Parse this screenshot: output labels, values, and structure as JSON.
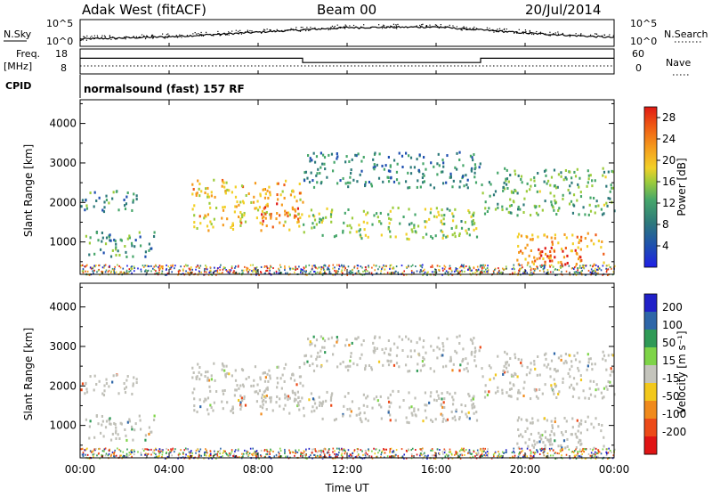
{
  "header": {
    "station": "Adak West (fitACF)",
    "beam": "Beam 00",
    "date": "20/Jul/2014"
  },
  "noise_panel": {
    "left_label": "N.Sky",
    "right_label": "N.Search",
    "left_ticks": [
      "10^5",
      "10^0"
    ],
    "right_ticks": [
      "10^5",
      "10^0"
    ]
  },
  "freq_panel": {
    "left_label_line1": "Freq.",
    "left_label_line2": "[MHz]",
    "left_ticks": [
      "18",
      "8"
    ],
    "right_label": "Nave",
    "right_ticks": [
      "60",
      "0"
    ]
  },
  "cpid": {
    "label": "CPID",
    "text": "normalsound (fast) 157 RF"
  },
  "power_panel": {
    "ylabel": "Slant Range [km]",
    "yticks": [
      "1000",
      "2000",
      "3000",
      "4000"
    ],
    "colorbar_label": "Power [dB]",
    "colorbar_ticks": [
      "4",
      "8",
      "12",
      "16",
      "20",
      "24",
      "28"
    ]
  },
  "velocity_panel": {
    "ylabel": "Slant Range [km]",
    "yticks": [
      "1000",
      "2000",
      "3000",
      "4000"
    ],
    "colorbar_label": "Velocity [m s⁻¹]",
    "colorbar_ticks": [
      "200",
      "100",
      "50",
      "15",
      "-15",
      "-50",
      "-100",
      "-200"
    ]
  },
  "xaxis": {
    "label": "Time UT",
    "ticks": [
      "00:00",
      "04:00",
      "08:00",
      "12:00",
      "16:00",
      "20:00",
      "00:00"
    ]
  },
  "colors": {
    "power_scale": [
      "#1f1fe6",
      "#1e4fb0",
      "#2e7a7a",
      "#46a66a",
      "#9ccc3c",
      "#f2d028",
      "#f59a1c",
      "#ef5a14",
      "#e01a14"
    ],
    "velocity_scale": [
      "#2020c8",
      "#2e66a8",
      "#2f9a56",
      "#7ed448",
      "#c4c4bc",
      "#f2c81c",
      "#f08a1c",
      "#ec4a18",
      "#e01414"
    ],
    "ground_scatter": "#c0c0b8"
  },
  "chart_data": [
    {
      "type": "line",
      "title": "N.Sky / N.Search",
      "x_unit": "hours UT",
      "xlim": [
        0,
        24
      ],
      "series": [
        {
          "name": "N.Sky",
          "x": [
            0,
            4,
            8,
            12,
            16,
            20,
            24
          ],
          "y": [
            10,
            30,
            300,
            3000,
            4000,
            200,
            20
          ]
        }
      ]
    },
    {
      "type": "line",
      "title": "Freq. [MHz] / Nave",
      "x_unit": "hours UT",
      "xlim": [
        0,
        24
      ],
      "series": [
        {
          "name": "Freq.",
          "x": [
            0,
            10,
            10,
            18,
            18,
            24
          ],
          "y": [
            14.5,
            14.5,
            12.5,
            12.5,
            14.5,
            14.5
          ]
        },
        {
          "name": "Nave",
          "x": [
            0,
            24
          ],
          "y": [
            10,
            10
          ]
        }
      ]
    },
    {
      "type": "heatmap",
      "title": "Power [dB]",
      "x_unit": "hours UT",
      "y_unit": "km",
      "xlim": [
        0,
        24
      ],
      "ylim": [
        180,
        4600
      ],
      "colorbar_range": [
        0,
        30
      ],
      "scatter_regions": [
        {
          "t0": 0.0,
          "t1": 3.4,
          "r0": 650,
          "r1": 1300,
          "power": 10
        },
        {
          "t0": 0.0,
          "t1": 2.6,
          "r0": 1800,
          "r1": 2350,
          "power": 9
        },
        {
          "t0": 5.0,
          "t1": 10.0,
          "r0": 1300,
          "r1": 2600,
          "power": 20
        },
        {
          "t0": 8.0,
          "t1": 9.8,
          "r0": 1500,
          "r1": 2000,
          "power": 26
        },
        {
          "t0": 10.0,
          "t1": 17.8,
          "r0": 1100,
          "r1": 1900,
          "power": 14
        },
        {
          "t0": 10.0,
          "t1": 18.0,
          "r0": 2400,
          "r1": 3300,
          "power": 8
        },
        {
          "t0": 18.0,
          "t1": 24.0,
          "r0": 1700,
          "r1": 2900,
          "power": 12
        },
        {
          "t0": 19.5,
          "t1": 23.5,
          "r0": 450,
          "r1": 1250,
          "power": 22
        },
        {
          "t0": 20.5,
          "t1": 22.5,
          "r0": 450,
          "r1": 900,
          "power": 28
        }
      ]
    },
    {
      "type": "heatmap",
      "title": "Velocity [m s⁻¹]",
      "x_unit": "hours UT",
      "y_unit": "km",
      "xlim": [
        0,
        24
      ],
      "ylim": [
        180,
        4600
      ],
      "colorbar_range": [
        -250,
        250
      ],
      "dominant_value": "ground scatter (-15 to 15)"
    }
  ]
}
